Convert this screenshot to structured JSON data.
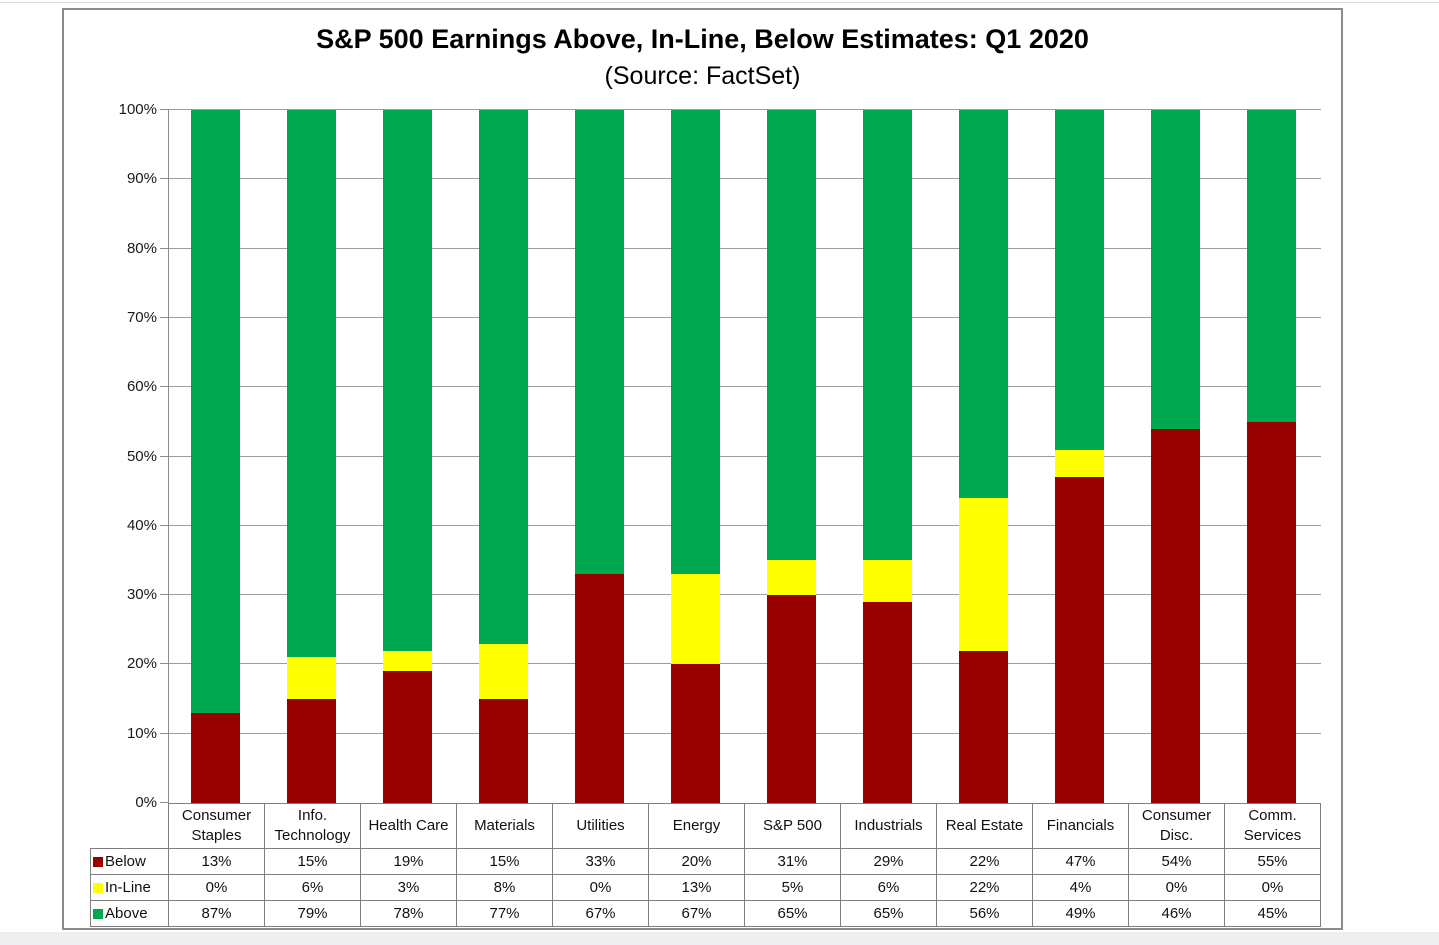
{
  "chart_data": {
    "type": "bar",
    "stacked": true,
    "title": "S&P 500 Earnings Above, In-Line, Below Estimates: Q1 2020",
    "subtitle": "(Source: FactSet)",
    "categories": [
      "Consumer Staples",
      "Info. Technology",
      "Health Care",
      "Materials",
      "Utilities",
      "Energy",
      "S&P 500",
      "Industrials",
      "Real Estate",
      "Financials",
      "Consumer Disc.",
      "Comm. Services"
    ],
    "series": [
      {
        "name": "Below",
        "color": "#990000",
        "values": [
          13,
          15,
          19,
          15,
          33,
          20,
          31,
          29,
          22,
          47,
          54,
          55
        ]
      },
      {
        "name": "In-Line",
        "color": "#FFFF00",
        "values": [
          0,
          6,
          3,
          8,
          0,
          13,
          5,
          6,
          22,
          4,
          0,
          0
        ]
      },
      {
        "name": "Above",
        "color": "#00A94F",
        "values": [
          87,
          79,
          78,
          77,
          67,
          67,
          65,
          65,
          56,
          49,
          46,
          45
        ]
      }
    ],
    "value_suffix": "%",
    "ylim": [
      0,
      100
    ],
    "y_ticks": [
      "0%",
      "10%",
      "20%",
      "30%",
      "40%",
      "50%",
      "60%",
      "70%",
      "80%",
      "90%",
      "100%"
    ],
    "grid": true,
    "legend_position": "table-left"
  }
}
